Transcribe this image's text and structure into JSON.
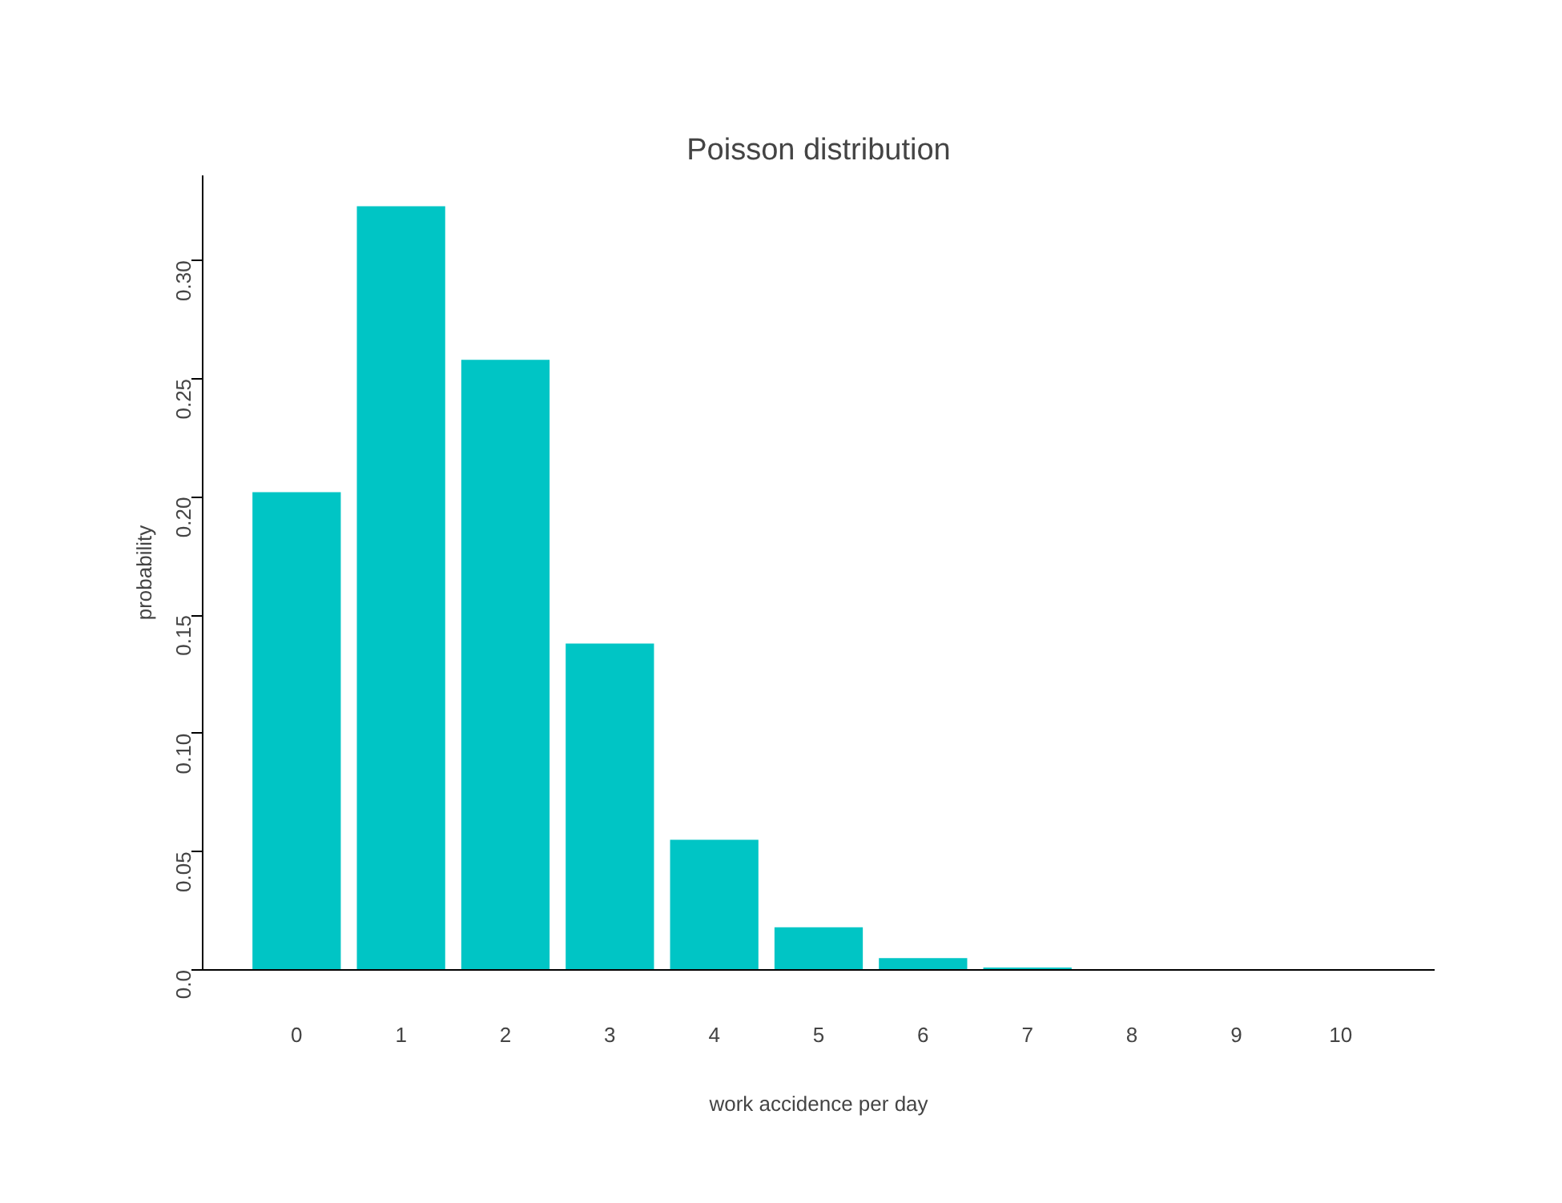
{
  "chart_data": {
    "type": "bar",
    "title": "Poisson distribution",
    "xlabel": "work accidence per day",
    "ylabel": "probability",
    "categories": [
      "0",
      "1",
      "2",
      "3",
      "4",
      "5",
      "6",
      "7",
      "8",
      "9",
      "10"
    ],
    "values": [
      0.202,
      0.323,
      0.258,
      0.138,
      0.055,
      0.018,
      0.005,
      0.001,
      0.0,
      0.0,
      0.0
    ],
    "color": "#00c5c5",
    "ylim": [
      0,
      0.336
    ],
    "yticks": [
      {
        "value": 0,
        "label": "0.0"
      },
      0.05,
      {
        "value": 0.1,
        "label": "0.10"
      },
      0.15,
      {
        "value": 0.2,
        "label": "0.20"
      },
      0.25,
      {
        "value": 0.3,
        "label": "0.30"
      }
    ],
    "grid": false
  }
}
